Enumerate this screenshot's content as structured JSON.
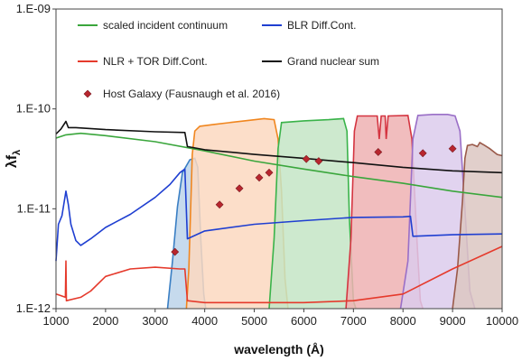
{
  "chart_data": {
    "type": "line",
    "title": "",
    "xlabel": "wavelength (Å)",
    "ylabel_main": "λf",
    "ylabel_sub": "λ",
    "yscale": "log",
    "xlim": [
      1000,
      10000
    ],
    "ylim": [
      1e-12,
      1e-09
    ],
    "x_ticks": [
      {
        "value": 1000,
        "label": "1000"
      },
      {
        "value": 2000,
        "label": "2000"
      },
      {
        "value": 3000,
        "label": "3000"
      },
      {
        "value": 4000,
        "label": "4000"
      },
      {
        "value": 5000,
        "label": "5000"
      },
      {
        "value": 6000,
        "label": "6000"
      },
      {
        "value": 7000,
        "label": "7000"
      },
      {
        "value": 8000,
        "label": "8000"
      },
      {
        "value": 9000,
        "label": "9000"
      },
      {
        "value": 10000,
        "label": "10000"
      }
    ],
    "y_ticks": [
      {
        "value": 1e-12,
        "label": "1.E-12"
      },
      {
        "value": 1e-11,
        "label": "1.E-11"
      },
      {
        "value": 1e-10,
        "label": "1.E-10"
      },
      {
        "value": 1e-09,
        "label": "1.E-09"
      }
    ],
    "grid": false,
    "legend_position": "top",
    "filter_bands": [
      {
        "color": "#3a7fc4",
        "fill": "#bcd3ea",
        "points": [
          [
            3250,
            1e-12
          ],
          [
            3350,
            3e-12
          ],
          [
            3450,
            1.05e-11
          ],
          [
            3550,
            2.3e-11
          ],
          [
            3700,
            3.1e-11
          ],
          [
            3800,
            3.2e-11
          ],
          [
            3860,
            2.6e-11
          ],
          [
            3920,
            5e-12
          ],
          [
            3980,
            1.4e-12
          ],
          [
            4020,
            1e-12
          ]
        ]
      },
      {
        "color": "#f0861f",
        "fill": "#fbd8bf",
        "points": [
          [
            3630,
            1e-12
          ],
          [
            3680,
            2.5e-12
          ],
          [
            3750,
            3.5e-11
          ],
          [
            3800,
            6e-11
          ],
          [
            3900,
            6.7e-11
          ],
          [
            4200,
            7e-11
          ],
          [
            4800,
            7.6e-11
          ],
          [
            5200,
            8e-11
          ],
          [
            5400,
            7.8e-11
          ],
          [
            5480,
            5e-11
          ],
          [
            5550,
            1.5e-11
          ],
          [
            5620,
            2e-12
          ],
          [
            5680,
            1e-12
          ]
        ]
      },
      {
        "color": "#3ab34a",
        "fill": "#c4e5c6",
        "points": [
          [
            5300,
            1e-12
          ],
          [
            5400,
            5e-12
          ],
          [
            5480,
            4e-11
          ],
          [
            5550,
            7.3e-11
          ],
          [
            6000,
            7.6e-11
          ],
          [
            6500,
            7.8e-11
          ],
          [
            6800,
            8e-11
          ],
          [
            6870,
            6e-11
          ],
          [
            6920,
            8e-12
          ],
          [
            7000,
            1.2e-12
          ],
          [
            7050,
            1e-12
          ]
        ]
      },
      {
        "color": "#d43440",
        "fill": "#efb2b3",
        "points": [
          [
            6850,
            1e-12
          ],
          [
            6950,
            5e-12
          ],
          [
            7020,
            6e-11
          ],
          [
            7080,
            8.5e-11
          ],
          [
            7480,
            8.5e-11
          ],
          [
            7520,
            5e-11
          ],
          [
            7560,
            8.5e-11
          ],
          [
            7640,
            8.5e-11
          ],
          [
            7660,
            5e-11
          ],
          [
            7700,
            8.5e-11
          ],
          [
            8100,
            8.6e-11
          ],
          [
            8180,
            5e-11
          ],
          [
            8280,
            5e-12
          ],
          [
            8350,
            1.2e-12
          ],
          [
            8400,
            1e-12
          ]
        ]
      },
      {
        "color": "#9a6fc7",
        "fill": "#dccbec",
        "points": [
          [
            7950,
            1e-12
          ],
          [
            8100,
            3e-12
          ],
          [
            8200,
            5e-11
          ],
          [
            8300,
            8.6e-11
          ],
          [
            8600,
            8.8e-11
          ],
          [
            8900,
            8.8e-11
          ],
          [
            9050,
            8.5e-11
          ],
          [
            9150,
            6e-11
          ],
          [
            9250,
            1e-11
          ],
          [
            9350,
            1.5e-12
          ],
          [
            9450,
            1e-12
          ]
        ]
      },
      {
        "color": "#9a5a4a",
        "fill": "#dcc7c2",
        "points": [
          [
            9000,
            1e-12
          ],
          [
            9100,
            2.5e-12
          ],
          [
            9200,
            1.2e-11
          ],
          [
            9250,
            3.2e-11
          ],
          [
            9300,
            4.3e-11
          ],
          [
            9400,
            4.4e-11
          ],
          [
            9500,
            4.2e-11
          ],
          [
            9550,
            4.6e-11
          ],
          [
            9650,
            4.3e-11
          ],
          [
            9750,
            4e-11
          ],
          [
            9900,
            3.5e-11
          ],
          [
            10000,
            3.4e-11
          ]
        ]
      }
    ],
    "series": [
      {
        "name": "scaled incident continuum",
        "color": "#3aa63c",
        "points": [
          [
            1000,
            5.1e-11
          ],
          [
            1200,
            5.5e-11
          ],
          [
            1500,
            5.7e-11
          ],
          [
            2000,
            5.4e-11
          ],
          [
            3000,
            4.7e-11
          ],
          [
            4000,
            3.8e-11
          ],
          [
            5000,
            3e-11
          ],
          [
            6000,
            2.5e-11
          ],
          [
            7000,
            2.1e-11
          ],
          [
            8000,
            1.8e-11
          ],
          [
            9000,
            1.5e-11
          ],
          [
            10000,
            1.3e-11
          ]
        ]
      },
      {
        "name": "BLR Diff.Cont.",
        "color": "#1f3fd1",
        "points": [
          [
            1000,
            3e-12
          ],
          [
            1050,
            7e-12
          ],
          [
            1120,
            8.5e-12
          ],
          [
            1200,
            1.5e-11
          ],
          [
            1250,
            1.1e-11
          ],
          [
            1300,
            7e-12
          ],
          [
            1400,
            4.8e-12
          ],
          [
            1500,
            4.3e-12
          ],
          [
            1700,
            5e-12
          ],
          [
            2000,
            6.5e-12
          ],
          [
            2500,
            8.8e-12
          ],
          [
            3000,
            1.3e-11
          ],
          [
            3300,
            1.75e-11
          ],
          [
            3500,
            2.3e-11
          ],
          [
            3600,
            2.5e-11
          ],
          [
            3650,
            5e-12
          ],
          [
            4000,
            6e-12
          ],
          [
            5000,
            7e-12
          ],
          [
            6000,
            7.6e-12
          ],
          [
            7000,
            8.2e-12
          ],
          [
            8000,
            8.3e-12
          ],
          [
            8150,
            8.4e-12
          ],
          [
            8200,
            5.3e-12
          ],
          [
            9000,
            5.5e-12
          ],
          [
            10000,
            5.6e-12
          ]
        ]
      },
      {
        "name": "NLR + TOR Diff.Cont.",
        "color": "#e53a2c",
        "points": [
          [
            1000,
            1.4e-12
          ],
          [
            1100,
            1.35e-12
          ],
          [
            1190,
            1.3e-12
          ],
          [
            1200,
            3e-12
          ],
          [
            1210,
            1.2e-12
          ],
          [
            1500,
            1.3e-12
          ],
          [
            1700,
            1.5e-12
          ],
          [
            2000,
            2.1e-12
          ],
          [
            2500,
            2.5e-12
          ],
          [
            3000,
            2.6e-12
          ],
          [
            3500,
            2.5e-12
          ],
          [
            3600,
            2.5e-12
          ],
          [
            3650,
            1.2e-12
          ],
          [
            4000,
            1.15e-12
          ],
          [
            5000,
            1.15e-12
          ],
          [
            6000,
            1.15e-12
          ],
          [
            7000,
            1.2e-12
          ],
          [
            8000,
            1.4e-12
          ],
          [
            9000,
            2.5e-12
          ],
          [
            10000,
            4.2e-12
          ]
        ]
      },
      {
        "name": "Grand nuclear sum",
        "color": "#111111",
        "points": [
          [
            1000,
            5.6e-11
          ],
          [
            1100,
            6.3e-11
          ],
          [
            1200,
            7.5e-11
          ],
          [
            1250,
            6.5e-11
          ],
          [
            1400,
            6.5e-11
          ],
          [
            2000,
            6.2e-11
          ],
          [
            3000,
            5.9e-11
          ],
          [
            3600,
            5.8e-11
          ],
          [
            3650,
            4.2e-11
          ],
          [
            4000,
            3.9e-11
          ],
          [
            5000,
            3.5e-11
          ],
          [
            6000,
            3.2e-11
          ],
          [
            7000,
            2.9e-11
          ],
          [
            8000,
            2.6e-11
          ],
          [
            9000,
            2.4e-11
          ],
          [
            10000,
            2.3e-11
          ]
        ]
      }
    ],
    "host_galaxy": {
      "name": "Host Galaxy (Fausnaugh et al. 2016)",
      "color": "#b8262e",
      "points": [
        [
          3400,
          3.7e-12
        ],
        [
          4300,
          1.1e-11
        ],
        [
          4700,
          1.6e-11
        ],
        [
          5100,
          2.05e-11
        ],
        [
          5300,
          2.3e-11
        ],
        [
          6050,
          3.15e-11
        ],
        [
          6300,
          3e-11
        ],
        [
          7500,
          3.7e-11
        ],
        [
          8400,
          3.6e-11
        ],
        [
          9000,
          4e-11
        ]
      ]
    }
  }
}
